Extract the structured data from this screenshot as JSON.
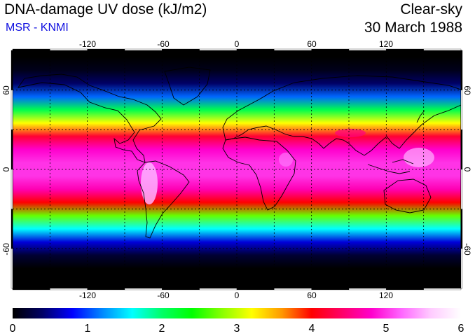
{
  "header": {
    "title": "DNA-damage UV dose (kJ/m2)",
    "subtitle": "MSR - KNMI",
    "sky_condition": "Clear-sky",
    "date": "30 March 1988"
  },
  "map": {
    "projection": "equirectangular",
    "lon_range": [
      -180,
      180
    ],
    "lat_range": [
      -90,
      90
    ],
    "lon_ticks": [
      "-120",
      "-60",
      "0",
      "60",
      "120"
    ],
    "lat_ticks_left": [
      "60",
      "0",
      "-60"
    ],
    "lat_ticks_right": [
      "60",
      "0",
      "-60"
    ],
    "graticule": "dotted every 30 degrees",
    "coastlines": true
  },
  "colorbar": {
    "ticks": [
      "0",
      "1",
      "2",
      "3",
      "4",
      "5",
      "6"
    ],
    "min": 0,
    "max": 6,
    "colors": [
      "#000000",
      "#000066",
      "#0000ff",
      "#0088ff",
      "#00ffff",
      "#00ff66",
      "#00ff00",
      "#88ff00",
      "#ffff00",
      "#ff9900",
      "#ff0000",
      "#ff0066",
      "#ff00cc",
      "#ff66ff",
      "#ffccff",
      "#ffffff"
    ]
  },
  "chart_data": {
    "type": "heatmap",
    "title": "DNA-damage UV dose (kJ/m2)",
    "x": "longitude",
    "y": "latitude",
    "zonal_mean_dose_by_latitude": [
      {
        "lat": 85,
        "value": 0.0
      },
      {
        "lat": 75,
        "value": 0.1
      },
      {
        "lat": 65,
        "value": 0.4
      },
      {
        "lat": 55,
        "value": 1.1
      },
      {
        "lat": 45,
        "value": 2.1
      },
      {
        "lat": 35,
        "value": 3.2
      },
      {
        "lat": 25,
        "value": 4.2
      },
      {
        "lat": 15,
        "value": 4.8
      },
      {
        "lat": 5,
        "value": 5.0
      },
      {
        "lat": -5,
        "value": 5.0
      },
      {
        "lat": -15,
        "value": 4.7
      },
      {
        "lat": -25,
        "value": 4.0
      },
      {
        "lat": -35,
        "value": 2.7
      },
      {
        "lat": -45,
        "value": 1.6
      },
      {
        "lat": -55,
        "value": 0.7
      },
      {
        "lat": -65,
        "value": 0.2
      },
      {
        "lat": -75,
        "value": 0.0
      },
      {
        "lat": -85,
        "value": 0.0
      }
    ],
    "colorbar_range": [
      0,
      6
    ]
  }
}
